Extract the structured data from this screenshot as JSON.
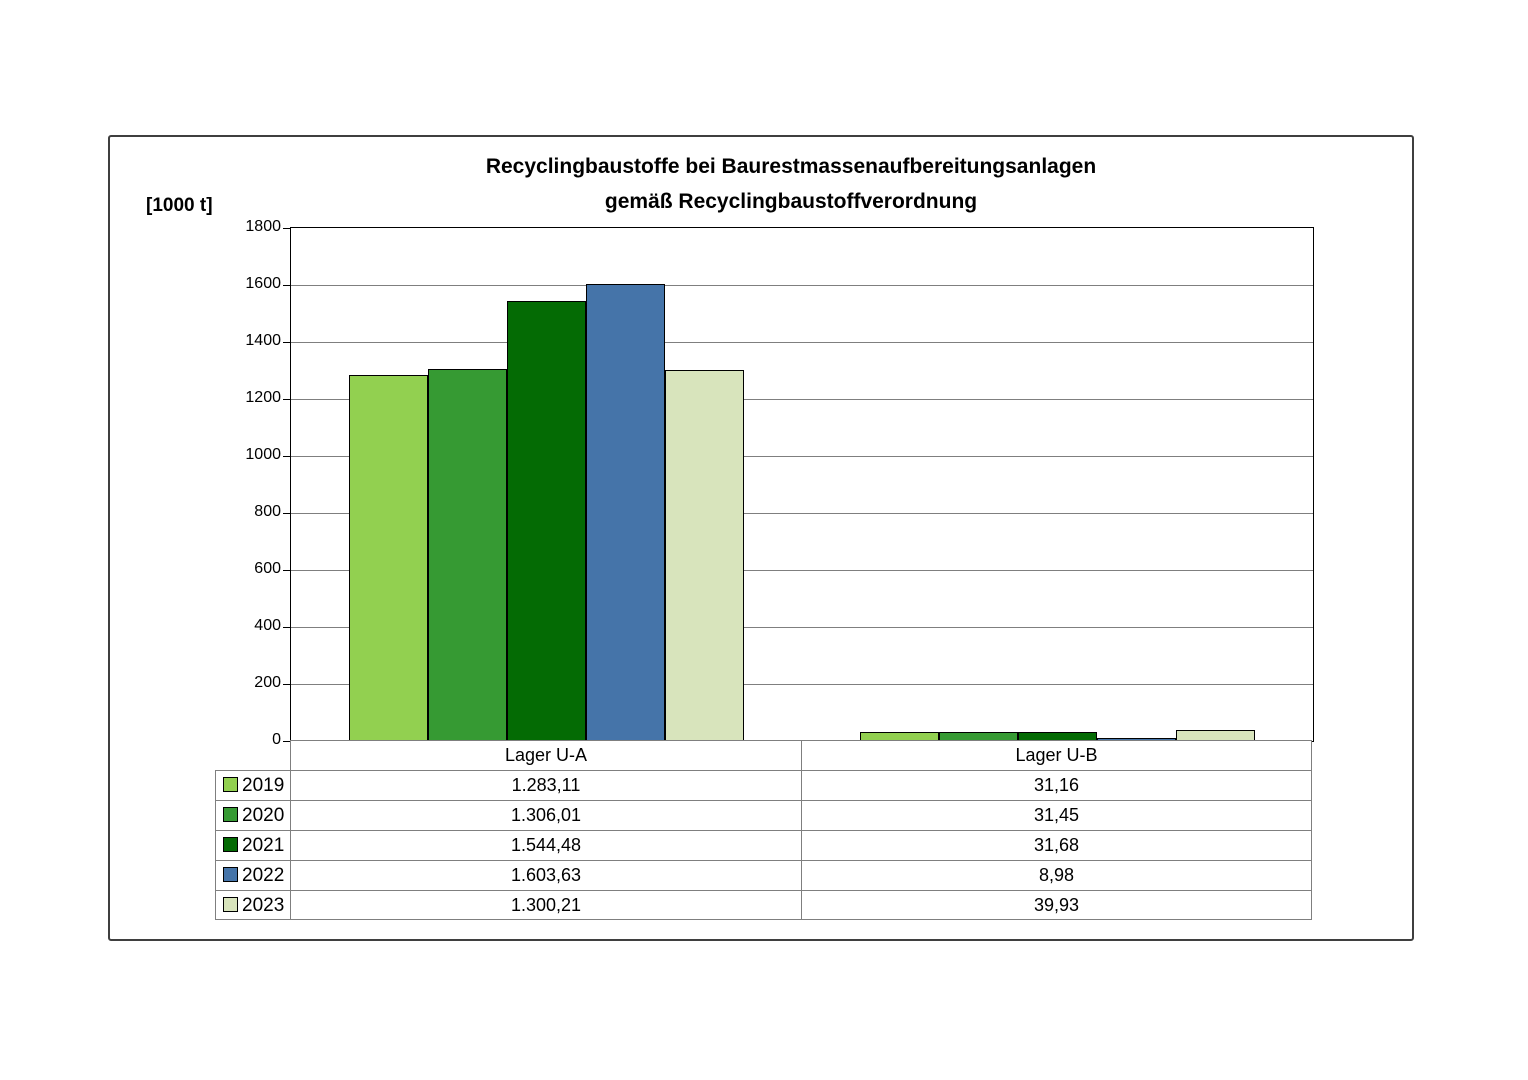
{
  "figure": {
    "title_line1": "Recyclingbaustoffe bei Baurestmassenaufbereitungsanlagen",
    "title_line2": "gemäß Recyclingbaustoffverordnung",
    "y_unit_label": "[1000 t]"
  },
  "chart_data": {
    "type": "bar",
    "title": "Recyclingbaustoffe bei Baurestmassenaufbereitungsanlagen gemäß Recyclingbaustoffverordnung",
    "ylabel": "[1000 t]",
    "ylim": [
      0,
      1800
    ],
    "yticks": [
      0,
      200,
      400,
      600,
      800,
      1000,
      1200,
      1400,
      1600,
      1800
    ],
    "grid": true,
    "legend_position": "table-left",
    "categories": [
      "Lager U-A",
      "Lager U-B"
    ],
    "series": [
      {
        "name": "2019",
        "color": "#92D050",
        "values": [
          1283.11,
          31.16
        ],
        "display": [
          "1.283,11",
          "31,16"
        ]
      },
      {
        "name": "2020",
        "color": "#369A33",
        "values": [
          1306.01,
          31.45
        ],
        "display": [
          "1.306,01",
          "31,45"
        ]
      },
      {
        "name": "2021",
        "color": "#046B04",
        "values": [
          1544.48,
          31.68
        ],
        "display": [
          "1.544,48",
          "31,68"
        ]
      },
      {
        "name": "2022",
        "color": "#4574A9",
        "values": [
          1603.63,
          8.98
        ],
        "display": [
          "1.603,63",
          "8,98"
        ]
      },
      {
        "name": "2023",
        "color": "#D8E4BC",
        "values": [
          1300.21,
          39.93
        ],
        "display": [
          "1.300,21",
          "39,93"
        ]
      }
    ]
  }
}
